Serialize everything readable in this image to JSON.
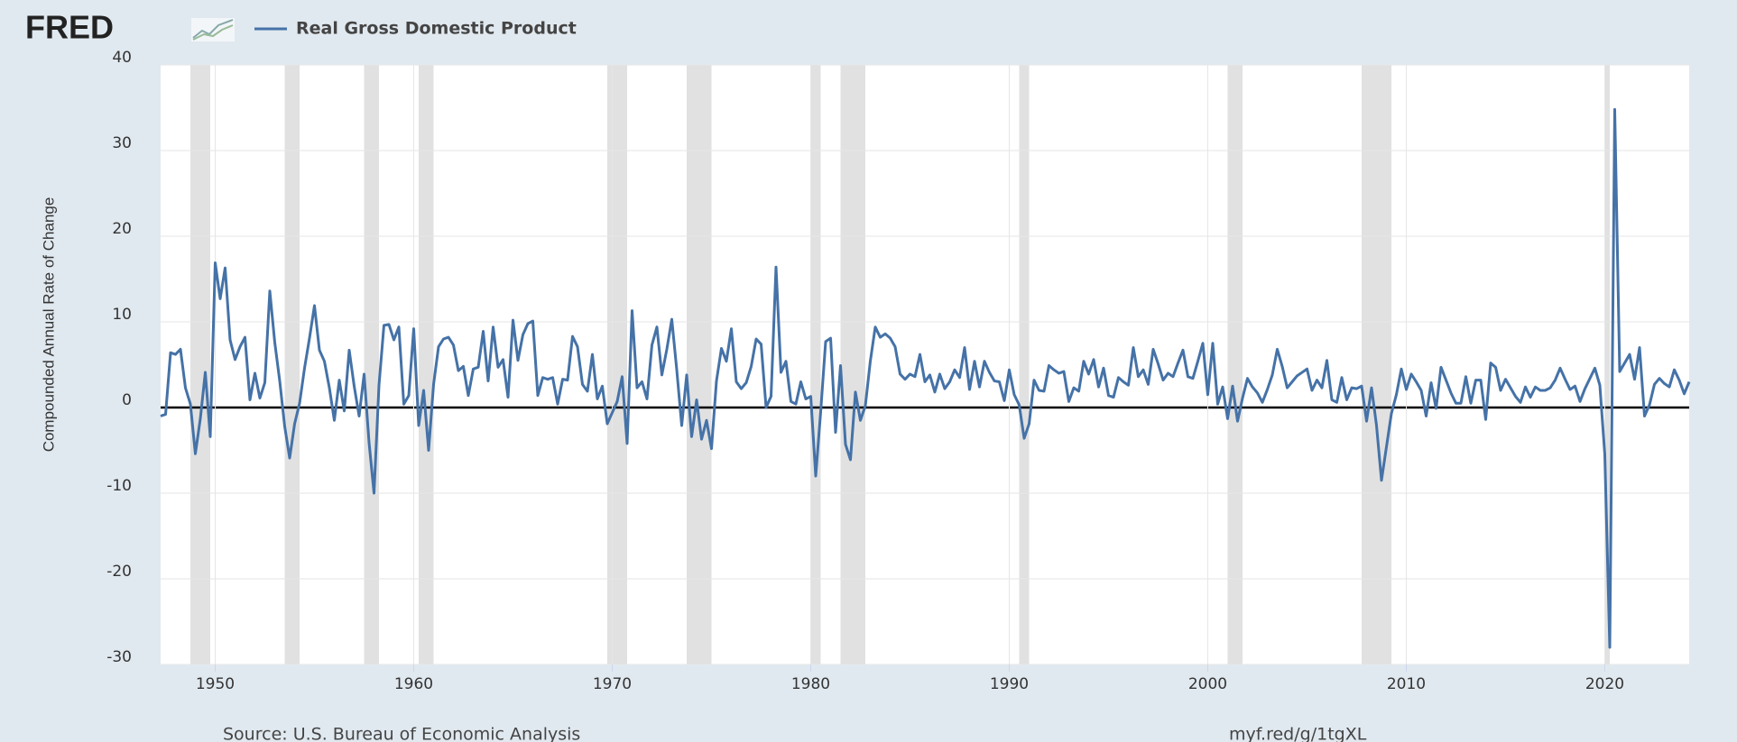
{
  "chart_data": {
    "type": "line",
    "logo": "FRED",
    "ylabel": "Compounded Annual Rate of Change",
    "source": "Source: U.S. Bureau of Economic Analysis",
    "link": "myf.red/g/1tgXL",
    "xlim": [
      1947.25,
      2024.25
    ],
    "xticks": [
      1950,
      1960,
      1970,
      1980,
      1990,
      2000,
      2010,
      2020
    ],
    "ylim": [
      -30,
      40
    ],
    "yticks": [
      -30,
      -20,
      -10,
      0,
      10,
      20,
      30,
      40
    ],
    "grid": true,
    "recession_color": "#e1e1e1",
    "recessions": [
      [
        1948.75,
        1949.75
      ],
      [
        1953.5,
        1954.25
      ],
      [
        1957.5,
        1958.25
      ],
      [
        1960.25,
        1961.0
      ],
      [
        1969.75,
        1970.75
      ],
      [
        1973.75,
        1975.0
      ],
      [
        1980.0,
        1980.5
      ],
      [
        1981.5,
        1982.75
      ],
      [
        1990.5,
        1991.0
      ],
      [
        2001.0,
        2001.75
      ],
      [
        2007.75,
        2009.25
      ],
      [
        2020.0,
        2020.25
      ]
    ],
    "x": [
      1947.25,
      1947.5,
      1947.75,
      1948,
      1948.25,
      1948.5,
      1948.75,
      1949,
      1949.25,
      1949.5,
      1949.75,
      1950,
      1950.25,
      1950.5,
      1950.75,
      1951,
      1951.25,
      1951.5,
      1951.75,
      1952,
      1952.25,
      1952.5,
      1952.75,
      1953,
      1953.25,
      1953.5,
      1953.75,
      1954,
      1954.25,
      1954.5,
      1954.75,
      1955,
      1955.25,
      1955.5,
      1955.75,
      1956,
      1956.25,
      1956.5,
      1956.75,
      1957,
      1957.25,
      1957.5,
      1957.75,
      1958,
      1958.25,
      1958.5,
      1958.75,
      1959,
      1959.25,
      1959.5,
      1959.75,
      1960,
      1960.25,
      1960.5,
      1960.75,
      1961,
      1961.25,
      1961.5,
      1961.75,
      1962,
      1962.25,
      1962.5,
      1962.75,
      1963,
      1963.25,
      1963.5,
      1963.75,
      1964,
      1964.25,
      1964.5,
      1964.75,
      1965,
      1965.25,
      1965.5,
      1965.75,
      1966,
      1966.25,
      1966.5,
      1966.75,
      1967,
      1967.25,
      1967.5,
      1967.75,
      1968,
      1968.25,
      1968.5,
      1968.75,
      1969,
      1969.25,
      1969.5,
      1969.75,
      1970,
      1970.25,
      1970.5,
      1970.75,
      1971,
      1971.25,
      1971.5,
      1971.75,
      1972,
      1972.25,
      1972.5,
      1972.75,
      1973,
      1973.25,
      1973.5,
      1973.75,
      1974,
      1974.25,
      1974.5,
      1974.75,
      1975,
      1975.25,
      1975.5,
      1975.75,
      1976,
      1976.25,
      1976.5,
      1976.75,
      1977,
      1977.25,
      1977.5,
      1977.75,
      1978,
      1978.25,
      1978.5,
      1978.75,
      1979,
      1979.25,
      1979.5,
      1979.75,
      1980,
      1980.25,
      1980.5,
      1980.75,
      1981,
      1981.25,
      1981.5,
      1981.75,
      1982,
      1982.25,
      1982.5,
      1982.75,
      1983,
      1983.25,
      1983.5,
      1983.75,
      1984,
      1984.25,
      1984.5,
      1984.75,
      1985,
      1985.25,
      1985.5,
      1985.75,
      1986,
      1986.25,
      1986.5,
      1986.75,
      1987,
      1987.25,
      1987.5,
      1987.75,
      1988,
      1988.25,
      1988.5,
      1988.75,
      1989,
      1989.25,
      1989.5,
      1989.75,
      1990,
      1990.25,
      1990.5,
      1990.75,
      1991,
      1991.25,
      1991.5,
      1991.75,
      1992,
      1992.25,
      1992.5,
      1992.75,
      1993,
      1993.25,
      1993.5,
      1993.75,
      1994,
      1994.25,
      1994.5,
      1994.75,
      1995,
      1995.25,
      1995.5,
      1995.75,
      1996,
      1996.25,
      1996.5,
      1996.75,
      1997,
      1997.25,
      1997.5,
      1997.75,
      1998,
      1998.25,
      1998.5,
      1998.75,
      1999,
      1999.25,
      1999.5,
      1999.75,
      2000,
      2000.25,
      2000.5,
      2000.75,
      2001,
      2001.25,
      2001.5,
      2001.75,
      2002,
      2002.25,
      2002.5,
      2002.75,
      2003,
      2003.25,
      2003.5,
      2003.75,
      2004,
      2004.25,
      2004.5,
      2004.75,
      2005,
      2005.25,
      2005.5,
      2005.75,
      2006,
      2006.25,
      2006.5,
      2006.75,
      2007,
      2007.25,
      2007.5,
      2007.75,
      2008,
      2008.25,
      2008.5,
      2008.75,
      2009,
      2009.25,
      2009.5,
      2009.75,
      2010,
      2010.25,
      2010.5,
      2010.75,
      2011,
      2011.25,
      2011.5,
      2011.75,
      2012,
      2012.25,
      2012.5,
      2012.75,
      2013,
      2013.25,
      2013.5,
      2013.75,
      2014,
      2014.25,
      2014.5,
      2014.75,
      2015,
      2015.25,
      2015.5,
      2015.75,
      2016,
      2016.25,
      2016.5,
      2016.75,
      2017,
      2017.25,
      2017.5,
      2017.75,
      2018,
      2018.25,
      2018.5,
      2018.75,
      2019,
      2019.25,
      2019.5,
      2019.75,
      2020,
      2020.25,
      2020.5,
      2020.75,
      2021,
      2021.25,
      2021.5,
      2021.75,
      2022,
      2022.25,
      2022.5,
      2022.75,
      2023,
      2023.25,
      2023.5,
      2023.75,
      2024,
      2024.25
    ],
    "series": [
      {
        "name": "Real Gross Domestic Product",
        "color": "#4572a7",
        "values": [
          -1.0,
          -0.8,
          6.4,
          6.2,
          6.8,
          2.3,
          0.4,
          -5.4,
          -1.3,
          4.1,
          -3.4,
          16.9,
          12.7,
          16.3,
          7.9,
          5.6,
          7.1,
          8.2,
          0.9,
          4.0,
          1.1,
          2.9,
          13.6,
          7.6,
          3.1,
          -2.2,
          -5.9,
          -1.9,
          0.5,
          4.6,
          8.1,
          11.9,
          6.7,
          5.4,
          2.3,
          -1.5,
          3.2,
          -0.4,
          6.7,
          2.5,
          -1.0,
          3.9,
          -4.1,
          -10.0,
          2.6,
          9.6,
          9.7,
          7.9,
          9.4,
          0.4,
          1.4,
          9.2,
          -2.1,
          2.0,
          -5.0,
          2.7,
          7.1,
          8.0,
          8.2,
          7.3,
          4.3,
          4.8,
          1.4,
          4.5,
          4.7,
          8.9,
          3.1,
          9.4,
          4.7,
          5.6,
          1.2,
          10.2,
          5.5,
          8.5,
          9.8,
          10.1,
          1.4,
          3.5,
          3.3,
          3.5,
          0.4,
          3.3,
          3.2,
          8.3,
          7.1,
          2.7,
          1.9,
          6.2,
          1.0,
          2.5,
          -1.9,
          -0.6,
          0.7,
          3.6,
          -4.2,
          11.3,
          2.3,
          3.0,
          1.0,
          7.3,
          9.4,
          3.8,
          6.8,
          10.3,
          4.4,
          -2.1,
          3.8,
          -3.4,
          0.9,
          -3.7,
          -1.5,
          -4.8,
          3.1,
          6.9,
          5.4,
          9.2,
          3.0,
          2.2,
          2.9,
          4.8,
          8.0,
          7.4,
          0.0,
          1.3,
          16.4,
          4.1,
          5.4,
          0.7,
          0.4,
          3.0,
          1.0,
          1.3,
          -8.0,
          -0.5,
          7.7,
          8.1,
          -2.9,
          4.9,
          -4.3,
          -6.1,
          1.8,
          -1.5,
          0.2,
          5.4,
          9.4,
          8.2,
          8.6,
          8.1,
          7.1,
          3.9,
          3.3,
          3.9,
          3.6,
          6.2,
          3.0,
          3.8,
          1.8,
          3.9,
          2.2,
          3.0,
          4.4,
          3.5,
          7.0,
          2.1,
          5.4,
          2.4,
          5.4,
          4.1,
          3.1,
          3.0,
          0.8,
          4.4,
          1.5,
          0.3,
          -3.6,
          -1.9,
          3.2,
          2.0,
          1.9,
          4.9,
          4.4,
          4.0,
          4.2,
          0.7,
          2.3,
          1.9,
          5.4,
          3.9,
          5.6,
          2.4,
          4.6,
          1.4,
          1.2,
          3.5,
          3.0,
          2.6,
          7.0,
          3.6,
          4.4,
          2.7,
          6.8,
          5.1,
          3.2,
          4.0,
          3.6,
          5.2,
          6.7,
          3.6,
          3.4,
          5.4,
          7.5,
          1.5,
          7.5,
          0.4,
          2.4,
          -1.3,
          2.5,
          -1.6,
          1.1,
          3.4,
          2.4,
          1.7,
          0.6,
          2.1,
          3.8,
          6.8,
          4.8,
          2.3,
          3.0,
          3.7,
          4.1,
          4.5,
          2.0,
          3.2,
          2.3,
          5.5,
          0.9,
          0.6,
          3.5,
          0.9,
          2.3,
          2.2,
          2.5,
          -1.6,
          2.3,
          -2.1,
          -8.5,
          -4.6,
          -0.7,
          1.5,
          4.5,
          2.1,
          3.9,
          3.0,
          2.0,
          -1.0,
          2.9,
          -0.1,
          4.7,
          3.2,
          1.7,
          0.5,
          0.5,
          3.6,
          0.5,
          3.2,
          3.2,
          -1.4,
          5.2,
          4.7,
          2.0,
          3.3,
          2.3,
          1.3,
          0.6,
          2.4,
          1.2,
          2.4,
          2.0,
          2.0,
          2.3,
          3.2,
          4.6,
          3.3,
          2.1,
          2.5,
          0.7,
          2.2,
          3.4,
          4.6,
          2.6,
          -5.5,
          -28.0,
          34.8,
          4.2,
          5.2,
          6.2,
          3.3,
          7.0,
          -1.0,
          0.3,
          2.7,
          3.4,
          2.8,
          2.4,
          4.4,
          3.2,
          1.6,
          3.0
        ]
      }
    ]
  }
}
